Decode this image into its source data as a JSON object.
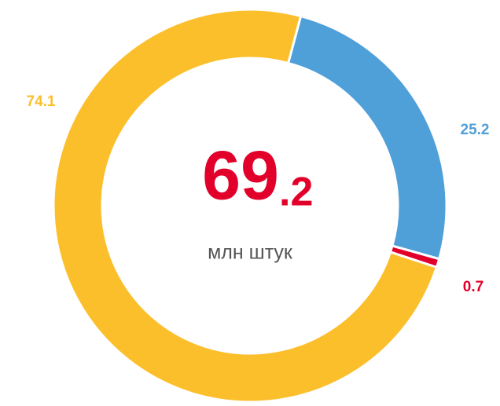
{
  "chart_data": {
    "type": "donut",
    "categories": [
      "blue",
      "red",
      "yellow"
    ],
    "series": [
      {
        "name": null,
        "values": [
          25.2,
          0.7,
          74.1
        ],
        "colors": [
          "#4f9fd9",
          "#e2002b",
          "#fcbf2c"
        ]
      }
    ],
    "center": {
      "main": "69",
      "fraction": ".2",
      "unit": "млн штук"
    }
  }
}
